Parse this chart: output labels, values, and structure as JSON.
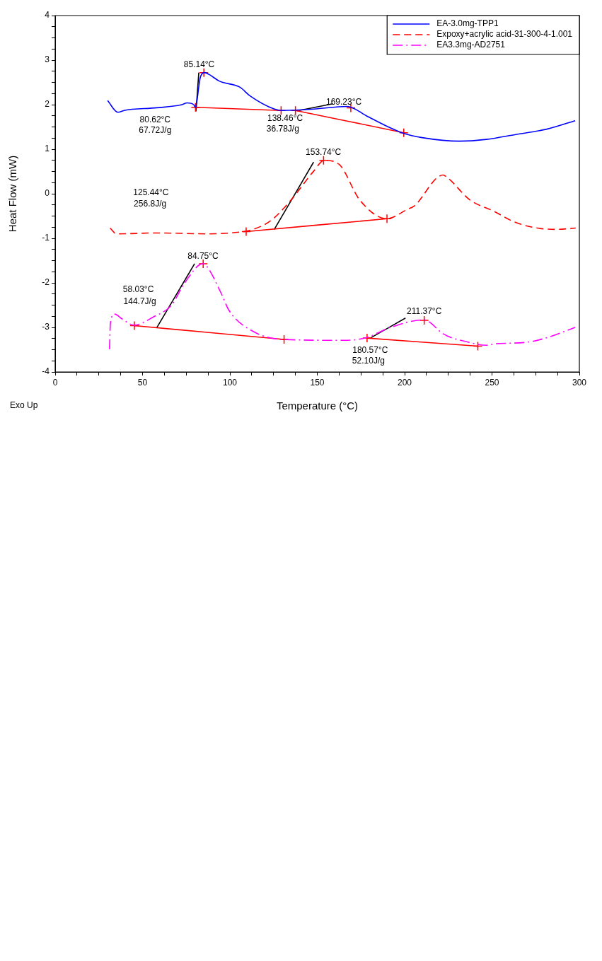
{
  "chart_data": {
    "type": "line",
    "xlabel": "Temperature (°C)",
    "ylabel": "Heat Flow (mW)",
    "xlim": [
      0,
      300
    ],
    "ylim": [
      -4,
      4
    ],
    "xticks": [
      0,
      {
        "value": 12.5,
        "label": null
      },
      {
        "value": 25,
        "label": null
      },
      {
        "value": 37.5,
        "label": null
      },
      50,
      {
        "value": 62.5,
        "label": null
      },
      {
        "value": 75,
        "label": null
      },
      {
        "value": 87.5,
        "label": null
      },
      100,
      {
        "value": 112.5,
        "label": null
      },
      {
        "value": 125,
        "label": null
      },
      {
        "value": 137.5,
        "label": null
      },
      150,
      {
        "value": 162.5,
        "label": null
      },
      {
        "value": 175,
        "label": null
      },
      {
        "value": 187.5,
        "label": null
      },
      200,
      {
        "value": 212.5,
        "label": null
      },
      {
        "value": 225,
        "label": null
      },
      {
        "value": 237.5,
        "label": null
      },
      250,
      {
        "value": 262.5,
        "label": null
      },
      {
        "value": 275,
        "label": null
      },
      {
        "value": 287.5,
        "label": null
      },
      300
    ],
    "yticks": [
      -4,
      {
        "value": -3.75,
        "label": null
      },
      {
        "value": -3.5,
        "label": null
      },
      {
        "value": -3.25,
        "label": null
      },
      -3,
      {
        "value": -2.75,
        "label": null
      },
      {
        "value": -2.5,
        "label": null
      },
      {
        "value": -2.25,
        "label": null
      },
      -2,
      {
        "value": -1.75,
        "label": null
      },
      {
        "value": -1.5,
        "label": null
      },
      {
        "value": -1.25,
        "label": null
      },
      -1,
      {
        "value": -0.75,
        "label": null
      },
      {
        "value": -0.5,
        "label": null
      },
      {
        "value": -0.25,
        "label": null
      },
      0,
      {
        "value": 0.25,
        "label": null
      },
      {
        "value": 0.5,
        "label": null
      },
      {
        "value": 0.75,
        "label": null
      },
      1,
      {
        "value": 1.25,
        "label": null
      },
      {
        "value": 1.5,
        "label": null
      },
      {
        "value": 1.75,
        "label": null
      },
      2,
      {
        "value": 2.25,
        "label": null
      },
      {
        "value": 2.5,
        "label": null
      },
      {
        "value": 2.75,
        "label": null
      },
      3,
      {
        "value": 3.25,
        "label": null
      },
      {
        "value": 3.5,
        "label": null
      },
      {
        "value": 3.75,
        "label": null
      },
      4
    ],
    "grid": false,
    "legend": "top right",
    "marker": "none",
    "series": [
      {
        "name": "EA-3.0mg-TPP1",
        "color": "#0000ff",
        "line_style": "solid",
        "x": [
          30,
          35.9,
          39.4,
          58.2,
          72.6,
          75.5,
          79.3,
          80.3,
          81,
          83,
          85.6,
          88,
          93.9,
          96,
          105.8,
          111.4,
          125.5,
          130.3,
          148,
          167,
          179,
          191.8,
          199,
          210,
          231.4,
          246.8,
          263.6,
          281.4,
          297.6
        ],
        "values": [
          2.09,
          1.83,
          1.87,
          1.93,
          2.0,
          2.04,
          2.0,
          1.94,
          2.05,
          2.6,
          2.72,
          2.68,
          2.53,
          2.5,
          2.39,
          2.2,
          1.9,
          1.87,
          1.9,
          1.96,
          1.73,
          1.48,
          1.36,
          1.26,
          1.18,
          1.22,
          1.33,
          1.45,
          1.64
        ]
      },
      {
        "name": "Expoxy+acrylic acid-31-300-4-1.001",
        "color": "#ff0000",
        "line_style": "dashed",
        "x": [
          31.4,
          35.1,
          58.2,
          88,
          103,
          111.4,
          123.2,
          135,
          148,
          154,
          162.5,
          174.3,
          189.8,
          201.6,
          205.3,
          222,
          224.3,
          237.4,
          250.4,
          264.6,
          286,
          297.9
        ],
        "values": [
          -0.77,
          -0.9,
          -0.88,
          -0.9,
          -0.87,
          -0.82,
          -0.61,
          -0.14,
          0.51,
          0.75,
          0.66,
          -0.14,
          -0.56,
          -0.35,
          -0.28,
          0.42,
          0.37,
          -0.14,
          -0.38,
          -0.66,
          -0.8,
          -0.77
        ]
      },
      {
        "name": "EA3.3mg-AD2751",
        "color": "#ff00ff",
        "line_style": "dashdot",
        "x": [
          31.1,
          31.6,
          34,
          38.3,
          45.2,
          56,
          66.8,
          73.8,
          84.6,
          87,
          95.2,
          99.5,
          113.8,
          130.3,
          166,
          178,
          191.8,
          211.2,
          214.2,
          221.9,
          236.2,
          246.8,
          251.6,
          270.6,
          281.4,
          297.6
        ],
        "values": [
          -3.49,
          -2.91,
          -2.7,
          -2.81,
          -2.95,
          -2.77,
          -2.49,
          -2.02,
          -1.57,
          -1.64,
          -2.25,
          -2.62,
          -3.1,
          -3.27,
          -3.29,
          -3.23,
          -3.0,
          -2.83,
          -2.88,
          -3.14,
          -3.33,
          -3.4,
          -3.37,
          -3.33,
          -3.23,
          -3.0
        ]
      },
      {
        "type": "line",
        "color": "#ff0000",
        "line_style": "solid",
        "marker": "cross",
        "x": [
          80.3,
          129.3
        ],
        "values": [
          1.94,
          1.87
        ]
      },
      {
        "type": "line",
        "color": "#ff0000",
        "line_style": "solid",
        "marker": "cross",
        "x": [
          137.5,
          199.5
        ],
        "values": [
          1.87,
          1.37
        ]
      },
      {
        "type": "line",
        "color": "#ff0000",
        "line_style": "solid",
        "marker": "cross",
        "x": [
          109.3,
          189.9
        ],
        "values": [
          -0.85,
          -0.56
        ]
      },
      {
        "type": "line",
        "color": "#ff0000",
        "line_style": "solid",
        "marker": "cross",
        "x": [
          45.3,
          131
        ],
        "values": [
          -2.96,
          -3.27
        ]
      },
      {
        "type": "line",
        "color": "#ff0000",
        "line_style": "solid",
        "marker": "cross",
        "x": [
          178.5,
          241.9
        ],
        "values": [
          -3.24,
          -3.42
        ]
      },
      {
        "type": "line",
        "color": "#000000",
        "line_style": "solid",
        "marker": "none",
        "x": [
          82.2,
          80.6
        ],
        "values": [
          2.72,
          1.85
        ]
      },
      {
        "type": "line",
        "color": "#000000",
        "line_style": "solid",
        "marker": "none",
        "x": [
          158.9,
          138.5
        ],
        "values": [
          2.02,
          1.86
        ]
      },
      {
        "type": "line",
        "color": "#000000",
        "line_style": "solid",
        "marker": "none",
        "x": [
          147.9,
          125.4
        ],
        "values": [
          0.71,
          -0.8
        ]
      },
      {
        "type": "line",
        "color": "#000000",
        "line_style": "solid",
        "marker": "none",
        "x": [
          79.8,
          58.1
        ],
        "values": [
          -1.57,
          -3.01
        ]
      },
      {
        "type": "line",
        "color": "#000000",
        "line_style": "solid",
        "marker": "none",
        "x": [
          200.5,
          180.3
        ],
        "values": [
          -2.79,
          -3.24
        ]
      },
      {
        "type": "scatter",
        "color": "#ff0000",
        "marker": "cross",
        "x": [
          85.1,
          169.2,
          153.6,
          84.7,
          211.2
        ],
        "values": [
          2.72,
          1.93,
          0.75,
          -1.57,
          -2.84
        ]
      }
    ],
    "annotations": [
      "85.14°C",
      "80.62°C",
      "67.72J/g",
      "169.23°C",
      "138.46°C",
      "36.78J/g",
      "153.74°C",
      "125.44°C",
      "256.8J/g",
      "84.75°C",
      "58.03°C",
      "144.7J/g",
      "211.37°C",
      "180.57°C",
      "52.10J/g",
      "Exo Up"
    ]
  }
}
